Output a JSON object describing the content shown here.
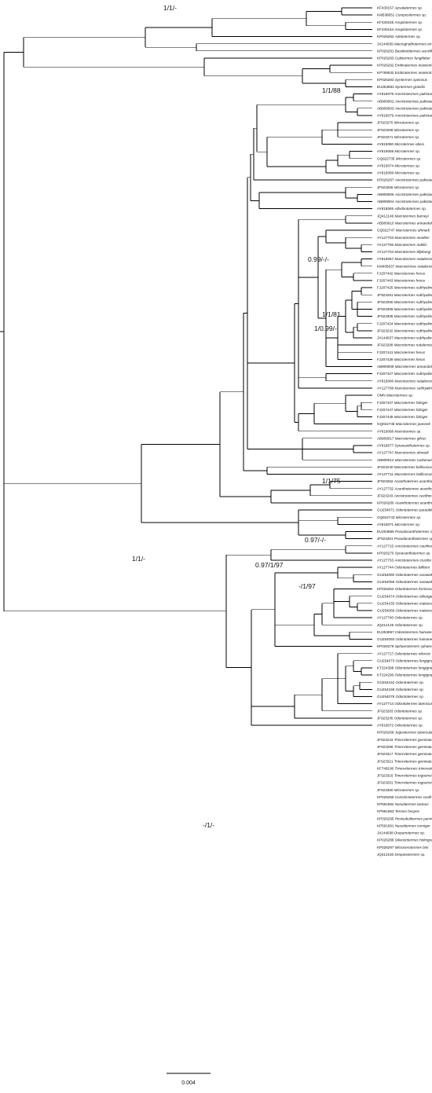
{
  "tips": [
    [
      "KF430157",
      "Apsalatermes sp."
    ],
    [
      "KM538651",
      "Compositermes sp."
    ],
    [
      "KF430155",
      "Anoplotermes sp."
    ],
    [
      "KF430154",
      "Anoplotermes sp."
    ],
    [
      "KP026282",
      "Adelotermes sp."
    ],
    [
      "JX144939",
      "Macrognathotermes errator"
    ],
    [
      "KP026281",
      "Basidentitermes aurivillii"
    ],
    [
      "KP026283",
      "Cubitermes fungifaber"
    ],
    [
      "KP026292",
      "Embiratermes neotenicus"
    ],
    [
      "KP789532",
      "Embiratermes neotenicus"
    ],
    [
      "KP026293",
      "Syntermes spinosus"
    ],
    [
      "EU253863",
      "Syntermes grandis"
    ],
    [
      "AY818078",
      "Ancistrotermes pakistanicus"
    ],
    [
      "AB909002",
      "Ancistrotermes pakistanicus"
    ],
    [
      "AB909003",
      "Ancistrotermes pakistanicus"
    ],
    [
      "AY818079",
      "Ancistrotermes pakistanicus"
    ],
    [
      "JF923270",
      "Microtermes sp."
    ],
    [
      "JF923268",
      "Microtermes sp."
    ],
    [
      "JF923271",
      "Microtermes sp."
    ],
    [
      "AY818080",
      "Microtermes obesi"
    ],
    [
      "AY818069",
      "Microtermes sp."
    ],
    [
      "GQ922735",
      "Microtermes sp."
    ],
    [
      "AY818074",
      "Microtermes sp."
    ],
    [
      "AY818068",
      "Microtermes sp."
    ],
    [
      "KP026287",
      "Ancistrotermes pakistanicus"
    ],
    [
      "JF923256",
      "Microtermes sp."
    ],
    [
      "AB909005",
      "Ancistrotermes pakistanicus"
    ],
    [
      "AB909004",
      "Ancistrotermes pakistanicus"
    ],
    [
      "AY818065",
      "Allodontotermes sp."
    ],
    [
      "JQ412146",
      "Macrotermes barneyi"
    ],
    [
      "AB909010",
      "Macrotermes annandalei"
    ],
    [
      "GQ922747",
      "Macrotermes ahmadi"
    ],
    [
      "AY127703",
      "Macrotermes muelleri"
    ],
    [
      "AY127706",
      "Macrotermes nobilis"
    ],
    [
      "AY127704",
      "Macrotermes lilljeborgi"
    ],
    [
      "AY818067",
      "Macrotermes natalensis"
    ],
    [
      "KM405637",
      "Macrotermes natalensis"
    ],
    [
      "FJ207442",
      "Macrotermes herus"
    ],
    [
      "FJ207443",
      "Macrotermes herus"
    ],
    [
      "FJ207425",
      "Macrotermes subhyalinus"
    ],
    [
      "JF923291",
      "Macrotermes subhyalinus"
    ],
    [
      "JF923290",
      "Macrotermes subhyalinus"
    ],
    [
      "JF923309",
      "Macrotermes subhyalinus"
    ],
    [
      "JF923308",
      "Macrotermes subhyalinus"
    ],
    [
      "FJ207424",
      "Macrotermes subhyalinus"
    ],
    [
      "JF923242",
      "Macrotermes subhyalinus"
    ],
    [
      "JX144937",
      "Macrotermes subhyalinus"
    ],
    [
      "JF923288",
      "Macrotermes natalensis"
    ],
    [
      "FJ207441",
      "Macrotermes herus"
    ],
    [
      "FJ207439",
      "Macrotermes herus"
    ],
    [
      "AB909009",
      "Macrotermes annandalei"
    ],
    [
      "FJ207427",
      "Macrotermes subhyalinus"
    ],
    [
      "AY818066",
      "Macrotermes natalensis"
    ],
    [
      "AY127708",
      "Macrotermes subhyalinus"
    ],
    [
      "OMN",
      "Macrotermes sp."
    ],
    [
      "FJ207437",
      "Macrotermes falciger"
    ],
    [
      "FJ207447",
      "Macrotermes falciger"
    ],
    [
      "FJ207445",
      "Macrotermes falciger"
    ],
    [
      "GQ922748",
      "Macrotermes jeanneli"
    ],
    [
      "AY818068",
      "Macrotermes sp."
    ],
    [
      "AB909017",
      "Macrotermes gilvus"
    ],
    [
      "AY818077",
      "Synacanthotermes sp."
    ],
    [
      "AY127747",
      "Macrotermes ahmadi"
    ],
    [
      "AB909012",
      "Macrotermes carbonarius"
    ],
    [
      "JF923240",
      "Macrotermes bellicosus"
    ],
    [
      "AY127711",
      "Macrotermes bellicosus"
    ],
    [
      "JF923262",
      "Acanthotermes acanthothorax"
    ],
    [
      "AY127732",
      "Acanthotermes acanthothorax"
    ],
    [
      "JF923243",
      "Ancistrotermes cavithorax"
    ],
    [
      "KP026280",
      "Acanthotermes acanthothorax"
    ],
    [
      "GU254071",
      "Odontotermes paraoblongatus"
    ],
    [
      "GQ922743",
      "Microtermes sp."
    ],
    [
      "AY818071",
      "Microtermes sp."
    ],
    [
      "EU253858",
      "Pseudacanthotermes spiniger"
    ],
    [
      "JF923261",
      "Pseudacanthotermes sp."
    ],
    [
      "AY127715",
      "Ancistrotermes cavithorax"
    ],
    [
      "KP026270",
      "Synacanthotermes sp."
    ],
    [
      "AY127733",
      "Ancistrotermes crucifer"
    ],
    [
      "AY127744",
      "Odontotermes billitoni"
    ],
    [
      "GU254060",
      "Odontotermes sarawakensis"
    ],
    [
      "GU254058",
      "Odontotermes sarawakensis"
    ],
    [
      "KP026254",
      "Odontotermes formosanus"
    ],
    [
      "GU254074",
      "Odontotermes oblongatus"
    ],
    [
      "GU254155",
      "Odontotermes malaccensis"
    ],
    [
      "GU254069",
      "Odontotermes malaccensis"
    ],
    [
      "AY127740",
      "Odontotermes sp."
    ],
    [
      "JQ412145",
      "Odontotermes sp."
    ],
    [
      "EU253857",
      "Odontotermes hainanensis"
    ],
    [
      "GU254093",
      "Odontotermes hainanensis"
    ],
    [
      "KP026279",
      "Sphaerotermes sphaerothorax"
    ],
    [
      "AY127717",
      "Odontotermes nilensis"
    ],
    [
      "GU254073",
      "Odontotermes longignathus"
    ],
    [
      "KT224398",
      "Odontotermes longignathus"
    ],
    [
      "KT224290",
      "Odontotermes longignathus"
    ],
    [
      "GU254152",
      "Odontotermes sp."
    ],
    [
      "GU254158",
      "Odontotermes sp."
    ],
    [
      "GU254076",
      "Odontotermes sp."
    ],
    [
      "AY127714",
      "Odontotermes latericius"
    ],
    [
      "JF923283",
      "Odontotermes sp."
    ],
    [
      "JF923245",
      "Odontotermes sp."
    ],
    [
      "AY818072",
      "Odontotermes sp."
    ],
    [
      "KP026268",
      "Jugositermes tuberculatus"
    ],
    [
      "JF923243",
      "Trinervitermes geminatus"
    ],
    [
      "JF923296",
      "Trinervitermes geminatus"
    ],
    [
      "JF923317",
      "Trinervitermes geminatus"
    ],
    [
      "JF923321",
      "Trinervitermes geminatus"
    ],
    [
      "KF748190",
      "Trinervitermes trinervoides"
    ],
    [
      "JF923316",
      "Trinervitermes togoensis"
    ],
    [
      "JF923281",
      "Trinervitermes togoensis"
    ],
    [
      "JF923360",
      "Microtermes sp."
    ],
    [
      "KP026256",
      "Constrictotermes cavifrons"
    ],
    [
      "KP591692",
      "Nasutitermes lacteus"
    ],
    [
      "KP591693",
      "Termes hospes"
    ],
    [
      "KP026295",
      "Postsubulitermes parviconstrictus"
    ],
    [
      "KP591691",
      "Nasutitermes corniger"
    ],
    [
      "JX144938",
      "Drepanotermes sp."
    ],
    [
      "KP026288",
      "Silvestritermes holmgreni"
    ],
    [
      "KP026297",
      "Microcerotermes bini"
    ],
    [
      "JQ412150",
      "Drepanotermes sp."
    ]
  ],
  "supports": [
    "1/1/-",
    "1/1/88",
    "0.99/-/-",
    "1/1/81",
    "1/0.99/-",
    "1/1/75",
    "0.97/-/-",
    "0.97/1/97",
    "1/1/-",
    "-/1/97",
    "-/1/-"
  ],
  "scale_bar": {
    "label": "0.004"
  }
}
